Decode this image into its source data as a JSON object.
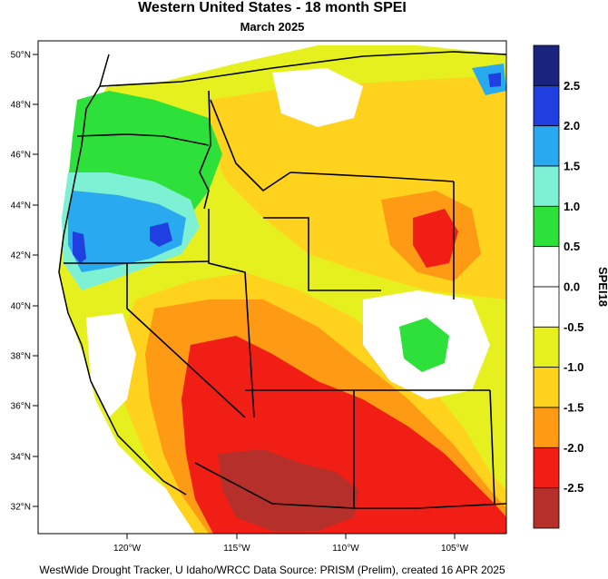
{
  "title": "Western United States - 18 month SPEI",
  "subtitle": "March 2025",
  "footer": "WestWide Drought Tracker, U Idaho/WRCC Data Source: PRISM (Prelim), created 16 APR 2025",
  "map": {
    "lat_ticks": [
      "50°N",
      "48°N",
      "46°N",
      "44°N",
      "42°N",
      "40°N",
      "38°N",
      "36°N",
      "34°N",
      "32°N"
    ],
    "lon_ticks": [
      "120°W",
      "115°W",
      "110°W",
      "105°W"
    ],
    "colors": {
      "wet_extreme": "#1a237e",
      "wet_severe": "#1f3fe0",
      "wet_moderate": "#29aaf0",
      "wet_mild": "#7ef0d4",
      "wet_slight": "#2ee03a",
      "near_normal": "#ffffff",
      "dry_slight": "#e6f01e",
      "dry_mild": "#ffd21e",
      "dry_moderate": "#ff9a14",
      "dry_severe": "#f01e14",
      "dry_extreme": "#b5302a"
    }
  },
  "colorbar": {
    "axis_label": "SPEI18",
    "tick_labels": [
      "2.5",
      "2.0",
      "1.5",
      "1.0",
      "0.5",
      "0.0",
      "-0.5",
      "-1.0",
      "-1.5",
      "-2.0",
      "-2.5"
    ],
    "colors": [
      "#1a237e",
      "#1f3fe0",
      "#29aaf0",
      "#7ef0d4",
      "#2ee03a",
      "#ffffff",
      "#ffffff",
      "#e6f01e",
      "#ffd21e",
      "#ff9a14",
      "#f01e14",
      "#b5302a"
    ]
  }
}
